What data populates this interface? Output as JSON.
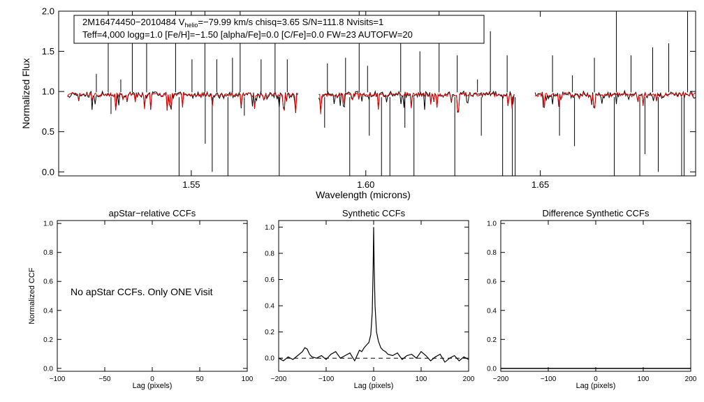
{
  "colors": {
    "observed": "#000000",
    "model": "#e00000",
    "axis": "#000000",
    "background": "#ffffff"
  },
  "chart_data": [
    {
      "id": "spectrum",
      "type": "line",
      "title": "",
      "info_box": {
        "line1": "2M16474450−2010484  V",
        "line1_sub": "helio",
        "line1_rest": "=−79.99 km/s  chisq=3.65  S/N=111.8  Nvisits=1",
        "line2": "Teff=4,000 logg=1.0 [Fe/H]=−1.50 [alpha/Fe]=0.0 [C/Fe]=0.0 FW=23 AUTOFW=20"
      },
      "xlabel": "Wavelength (microns)",
      "ylabel": "Normalized Flux",
      "xlim": [
        1.512,
        1.6945
      ],
      "ylim": [
        -0.05,
        2.0
      ],
      "xticks": [
        1.55,
        1.6,
        1.65
      ],
      "xtick_labels": [
        "1.55",
        "1.60",
        "1.65"
      ],
      "yticks": [
        0.0,
        0.5,
        1.0,
        1.5,
        2.0
      ],
      "ytick_labels": [
        "0.0",
        "0.5",
        "1.0",
        "1.5",
        "2.0"
      ],
      "chips": [
        [
          1.5145,
          1.5805
        ],
        [
          1.5865,
          1.6425
        ],
        [
          1.6485,
          1.6945
        ]
      ],
      "continuum": 0.96,
      "emission_lines": [
        {
          "x": 1.5228,
          "y": 1.22
        },
        {
          "x": 1.5262,
          "y": 2.0
        },
        {
          "x": 1.5298,
          "y": 1.15
        },
        {
          "x": 1.5331,
          "y": 2.0
        },
        {
          "x": 1.5372,
          "y": 1.7
        },
        {
          "x": 1.5455,
          "y": 2.0
        },
        {
          "x": 1.5502,
          "y": 1.4
        },
        {
          "x": 1.5539,
          "y": 2.0
        },
        {
          "x": 1.5573,
          "y": 1.4
        },
        {
          "x": 1.5618,
          "y": 1.42
        },
        {
          "x": 1.564,
          "y": 2.0
        },
        {
          "x": 1.57,
          "y": 1.4
        },
        {
          "x": 1.574,
          "y": 1.75
        },
        {
          "x": 1.5775,
          "y": 1.4
        },
        {
          "x": 1.589,
          "y": 1.35
        },
        {
          "x": 1.5942,
          "y": 1.42
        },
        {
          "x": 1.5981,
          "y": 2.0
        },
        {
          "x": 1.6005,
          "y": 1.32
        },
        {
          "x": 1.61,
          "y": 1.7
        },
        {
          "x": 1.6155,
          "y": 1.5
        },
        {
          "x": 1.621,
          "y": 2.0
        },
        {
          "x": 1.6262,
          "y": 1.45
        },
        {
          "x": 1.632,
          "y": 1.15
        },
        {
          "x": 1.6357,
          "y": 1.75
        },
        {
          "x": 1.6405,
          "y": 1.45
        },
        {
          "x": 1.6535,
          "y": 1.45
        },
        {
          "x": 1.6592,
          "y": 1.2
        },
        {
          "x": 1.6655,
          "y": 1.42
        },
        {
          "x": 1.6718,
          "y": 2.0
        },
        {
          "x": 1.676,
          "y": 1.45
        },
        {
          "x": 1.6822,
          "y": 1.55
        },
        {
          "x": 1.6868,
          "y": 1.6
        },
        {
          "x": 1.6922,
          "y": 2.0
        }
      ],
      "absorption_lines": [
        {
          "x": 1.527,
          "y": 0.72
        },
        {
          "x": 1.5465,
          "y": -0.05
        },
        {
          "x": 1.554,
          "y": 0.35
        },
        {
          "x": 1.556,
          "y": 0.0
        },
        {
          "x": 1.5605,
          "y": -0.05
        },
        {
          "x": 1.5652,
          "y": 0.7
        },
        {
          "x": 1.5752,
          "y": -0.05
        },
        {
          "x": 1.5882,
          "y": 0.55
        },
        {
          "x": 1.5954,
          "y": -0.05
        },
        {
          "x": 1.601,
          "y": 0.45
        },
        {
          "x": 1.6045,
          "y": -0.05
        },
        {
          "x": 1.6069,
          "y": -0.05
        },
        {
          "x": 1.6112,
          "y": 0.55
        },
        {
          "x": 1.6138,
          "y": -0.05
        },
        {
          "x": 1.6255,
          "y": -0.05
        },
        {
          "x": 1.6331,
          "y": 0.45
        },
        {
          "x": 1.6392,
          "y": -0.05
        },
        {
          "x": 1.642,
          "y": -0.05
        },
        {
          "x": 1.6428,
          "y": -0.05
        },
        {
          "x": 1.6555,
          "y": 0.45
        },
        {
          "x": 1.6598,
          "y": 0.32
        },
        {
          "x": 1.6712,
          "y": -0.05
        },
        {
          "x": 1.6785,
          "y": -0.05
        },
        {
          "x": 1.68,
          "y": 0.22
        },
        {
          "x": 1.6838,
          "y": 0.0
        },
        {
          "x": 1.6905,
          "y": -0.05
        },
        {
          "x": 1.6912,
          "y": -0.05
        }
      ]
    },
    {
      "id": "apstar-ccf",
      "type": "line",
      "title": "apStar−relative CCFs",
      "xlabel": "Lag (pixels)",
      "ylabel": "Normalized CCF",
      "xlim": [
        -100,
        100
      ],
      "ylim": [
        -0.02,
        1.02
      ],
      "xticks": [
        -100,
        -50,
        0,
        50,
        100
      ],
      "xtick_labels": [
        "−100",
        "−50",
        "0",
        "50",
        "100"
      ],
      "yticks": [
        0.0,
        0.2,
        0.4,
        0.6,
        0.8,
        1.0
      ],
      "ytick_labels": [
        "0.0",
        "0.2",
        "0.4",
        "0.6",
        "0.8",
        "1.0"
      ],
      "annotation": "No apStar CCFs.  Only ONE Visit"
    },
    {
      "id": "synthetic-ccf",
      "type": "line",
      "title": "Synthetic CCFs",
      "xlabel": "Lag (pixels)",
      "ylabel": "",
      "xlim": [
        -200,
        200
      ],
      "ylim": [
        -0.1,
        1.05
      ],
      "xticks": [
        -200,
        -100,
        0,
        100,
        200
      ],
      "xtick_labels": [
        "−200",
        "−100",
        "0",
        "100",
        "200"
      ],
      "yticks": [
        0.0,
        0.2,
        0.4,
        0.6,
        0.8,
        1.0
      ],
      "ytick_labels": [
        "0.0",
        "0.2",
        "0.4",
        "0.6",
        "0.8",
        "1.0"
      ],
      "series": [
        {
          "name": "ccf",
          "x": [
            -200,
            -190,
            -180,
            -170,
            -160,
            -150,
            -145,
            -140,
            -135,
            -130,
            -120,
            -110,
            -100,
            -90,
            -80,
            -70,
            -60,
            -50,
            -40,
            -30,
            -25,
            -20,
            -15,
            -10,
            -6,
            -3,
            -1,
            0,
            1,
            3,
            6,
            10,
            15,
            20,
            25,
            30,
            40,
            50,
            60,
            70,
            80,
            90,
            100,
            110,
            120,
            130,
            140,
            150,
            160,
            170,
            180,
            190,
            200
          ],
          "y": [
            0.0,
            -0.02,
            0.01,
            -0.01,
            0.02,
            0.05,
            0.08,
            0.07,
            0.03,
            0.01,
            0.0,
            0.02,
            -0.01,
            0.03,
            0.05,
            0.0,
            0.02,
            0.04,
            -0.02,
            0.06,
            0.05,
            0.08,
            0.1,
            0.12,
            0.18,
            0.35,
            0.7,
            1.0,
            0.72,
            0.4,
            0.2,
            0.13,
            0.08,
            0.06,
            0.05,
            0.03,
            0.02,
            0.04,
            -0.01,
            0.02,
            0.03,
            0.0,
            0.05,
            0.02,
            -0.02,
            0.01,
            0.03,
            -0.03,
            0.0,
            0.02,
            -0.02,
            0.01,
            -0.01
          ]
        },
        {
          "name": "zero-line",
          "x": [
            -200,
            200
          ],
          "y": [
            0,
            0
          ]
        }
      ]
    },
    {
      "id": "difference-ccf",
      "type": "line",
      "title": "Difference Synthetic CCFs",
      "xlabel": "Lag (pixels)",
      "ylabel": "",
      "xlim": [
        -200,
        200
      ],
      "ylim": [
        -0.02,
        1.02
      ],
      "xticks": [
        -200,
        -100,
        0,
        100,
        200
      ],
      "xtick_labels": [
        "−200",
        "−100",
        "0",
        "100",
        "200"
      ],
      "yticks": [
        0.0,
        0.2,
        0.4,
        0.6,
        0.8,
        1.0
      ],
      "ytick_labels": [
        "0.0",
        "0.2",
        "0.4",
        "0.6",
        "0.8",
        "1.0"
      ],
      "series": [
        {
          "name": "difference",
          "x": [
            -200,
            200
          ],
          "y": [
            0,
            0
          ]
        }
      ]
    }
  ]
}
